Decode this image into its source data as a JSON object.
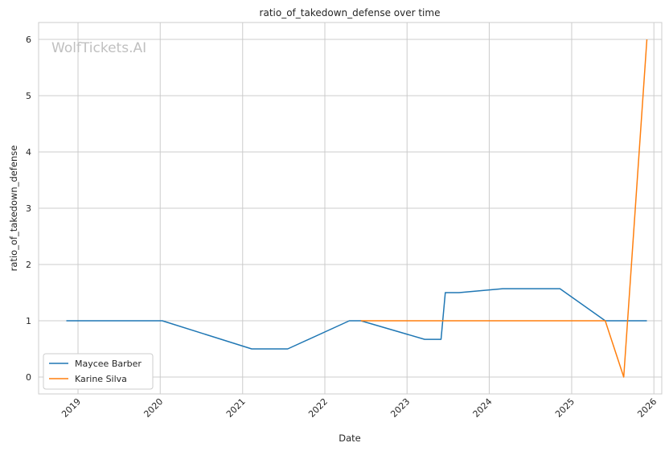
{
  "chart_data": {
    "type": "line",
    "title": "ratio_of_takedown_defense over time",
    "xlabel": "Date",
    "ylabel": "ratio_of_takedown_defense",
    "watermark": "WolfTickets.AI",
    "x_ticks": [
      "2019",
      "2020",
      "2021",
      "2022",
      "2023",
      "2024",
      "2025",
      "2026"
    ],
    "y_ticks": [
      "0",
      "1",
      "2",
      "3",
      "4",
      "5",
      "6"
    ],
    "xlim": [
      "2018-07-10",
      "2026-02-05"
    ],
    "ylim": [
      -0.3,
      6.3
    ],
    "grid": true,
    "legend_position": "lower-left",
    "series": [
      {
        "name": "Maycee Barber",
        "color": "#1f77b4",
        "points": [
          [
            "2018-11-10",
            1.0
          ],
          [
            "2020-01-10",
            1.0
          ],
          [
            "2021-02-10",
            0.5
          ],
          [
            "2021-07-20",
            0.5
          ],
          [
            "2022-04-20",
            1.0
          ],
          [
            "2022-06-10",
            1.0
          ],
          [
            "2023-03-20",
            0.67
          ],
          [
            "2023-06-01",
            0.67
          ],
          [
            "2023-06-20",
            1.5
          ],
          [
            "2023-08-20",
            1.5
          ],
          [
            "2024-03-01",
            1.57
          ],
          [
            "2024-11-10",
            1.57
          ],
          [
            "2025-05-30",
            1.0
          ],
          [
            "2025-12-01",
            1.0
          ]
        ]
      },
      {
        "name": "Karine Silva",
        "color": "#ff7f0e",
        "points": [
          [
            "2022-06-10",
            1.0
          ],
          [
            "2025-05-30",
            1.0
          ],
          [
            "2025-08-20",
            0.0
          ],
          [
            "2025-12-01",
            6.0
          ]
        ]
      }
    ]
  }
}
